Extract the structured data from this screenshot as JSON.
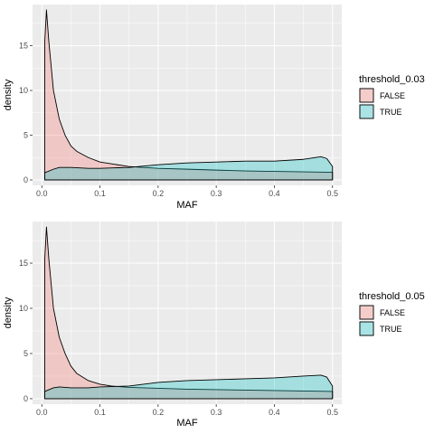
{
  "colors": {
    "panel_bg": "#EBEBEB",
    "grid_major": "#FFFFFF",
    "false_fill": "#F8766D",
    "true_fill": "#00BFC4",
    "outline": "#000000",
    "tick_text": "#4D4D4D"
  },
  "chart_data": [
    {
      "type": "area",
      "title": "",
      "xlabel": "MAF",
      "ylabel": "density",
      "xlim": [
        0,
        0.5
      ],
      "ylim": [
        0,
        19
      ],
      "x_ticks": [
        0.0,
        0.1,
        0.2,
        0.3,
        0.4,
        0.5
      ],
      "x_tick_labels": [
        "0.0",
        "0.1",
        "0.2",
        "0.3",
        "0.4",
        "0.5"
      ],
      "y_ticks": [
        0,
        5,
        10,
        15
      ],
      "y_tick_labels": [
        "0",
        "5",
        "10",
        "15"
      ],
      "grid": true,
      "legend": {
        "title": "threshold_0.03",
        "position": "right",
        "entries": [
          "FALSE",
          "TRUE"
        ]
      },
      "series": [
        {
          "name": "FALSE",
          "points": [
            [
              0.005,
              15.4
            ],
            [
              0.008,
              19.0
            ],
            [
              0.012,
              15.5
            ],
            [
              0.02,
              10.0
            ],
            [
              0.03,
              6.8
            ],
            [
              0.04,
              5.0
            ],
            [
              0.05,
              3.8
            ],
            [
              0.06,
              3.2
            ],
            [
              0.08,
              2.5
            ],
            [
              0.1,
              2.0
            ],
            [
              0.12,
              1.8
            ],
            [
              0.15,
              1.5
            ],
            [
              0.2,
              1.3
            ],
            [
              0.25,
              1.2
            ],
            [
              0.3,
              1.1
            ],
            [
              0.35,
              1.0
            ],
            [
              0.4,
              0.95
            ],
            [
              0.45,
              0.9
            ],
            [
              0.5,
              0.85
            ]
          ]
        },
        {
          "name": "TRUE",
          "points": [
            [
              0.005,
              0.8
            ],
            [
              0.02,
              1.2
            ],
            [
              0.03,
              1.4
            ],
            [
              0.05,
              1.4
            ],
            [
              0.08,
              1.3
            ],
            [
              0.1,
              1.3
            ],
            [
              0.15,
              1.4
            ],
            [
              0.2,
              1.7
            ],
            [
              0.25,
              1.9
            ],
            [
              0.3,
              2.0
            ],
            [
              0.35,
              2.1
            ],
            [
              0.4,
              2.1
            ],
            [
              0.45,
              2.3
            ],
            [
              0.48,
              2.6
            ],
            [
              0.49,
              2.4
            ],
            [
              0.5,
              1.5
            ]
          ]
        }
      ]
    },
    {
      "type": "area",
      "title": "",
      "xlabel": "MAF",
      "ylabel": "density",
      "xlim": [
        0,
        0.5
      ],
      "ylim": [
        0,
        19
      ],
      "x_ticks": [
        0.0,
        0.1,
        0.2,
        0.3,
        0.4,
        0.5
      ],
      "x_tick_labels": [
        "0.0",
        "0.1",
        "0.2",
        "0.3",
        "0.4",
        "0.5"
      ],
      "y_ticks": [
        0,
        5,
        10,
        15
      ],
      "y_tick_labels": [
        "0",
        "5",
        "10",
        "15"
      ],
      "grid": true,
      "legend": {
        "title": "threshold_0.05",
        "position": "right",
        "entries": [
          "FALSE",
          "TRUE"
        ]
      },
      "series": [
        {
          "name": "FALSE",
          "points": [
            [
              0.005,
              15.4
            ],
            [
              0.008,
              19.0
            ],
            [
              0.012,
              15.5
            ],
            [
              0.02,
              10.0
            ],
            [
              0.03,
              6.8
            ],
            [
              0.04,
              5.0
            ],
            [
              0.05,
              3.6
            ],
            [
              0.06,
              2.8
            ],
            [
              0.08,
              2.0
            ],
            [
              0.1,
              1.6
            ],
            [
              0.12,
              1.4
            ],
            [
              0.15,
              1.25
            ],
            [
              0.2,
              1.15
            ],
            [
              0.25,
              1.05
            ],
            [
              0.3,
              1.0
            ],
            [
              0.35,
              0.95
            ],
            [
              0.4,
              0.9
            ],
            [
              0.45,
              0.85
            ],
            [
              0.5,
              0.8
            ]
          ]
        },
        {
          "name": "TRUE",
          "points": [
            [
              0.005,
              0.8
            ],
            [
              0.02,
              1.2
            ],
            [
              0.03,
              1.3
            ],
            [
              0.05,
              1.2
            ],
            [
              0.08,
              1.2
            ],
            [
              0.1,
              1.3
            ],
            [
              0.15,
              1.4
            ],
            [
              0.2,
              1.8
            ],
            [
              0.25,
              2.0
            ],
            [
              0.3,
              2.1
            ],
            [
              0.35,
              2.2
            ],
            [
              0.4,
              2.3
            ],
            [
              0.45,
              2.5
            ],
            [
              0.48,
              2.6
            ],
            [
              0.49,
              2.4
            ],
            [
              0.5,
              1.4
            ]
          ]
        }
      ]
    }
  ]
}
